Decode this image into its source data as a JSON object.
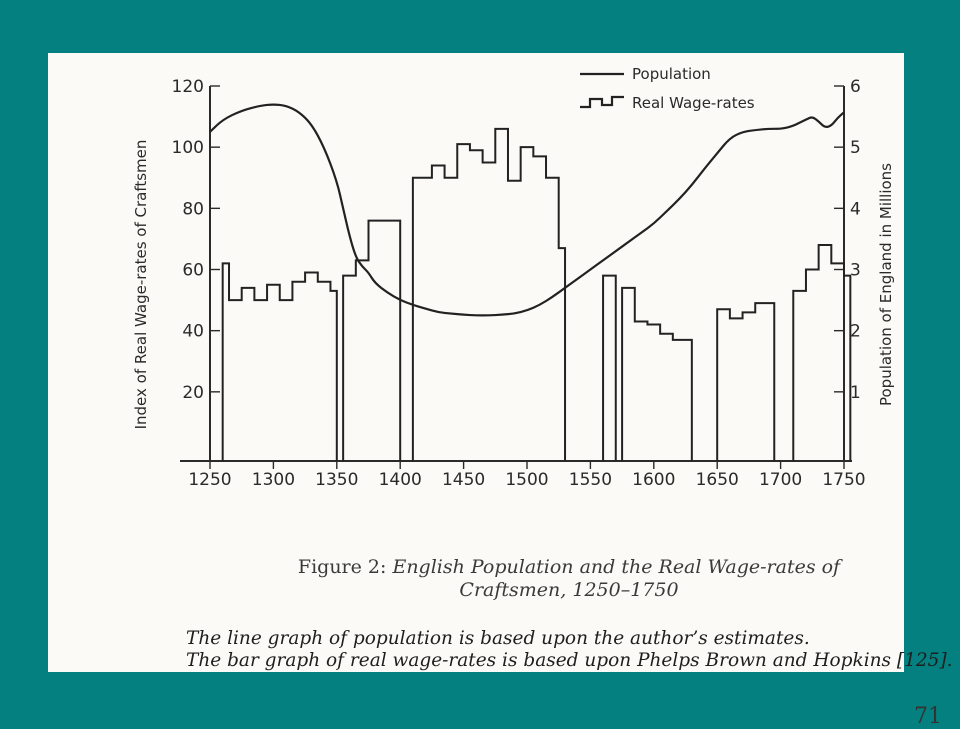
{
  "chart_data": {
    "type": "bar-line",
    "title": "",
    "ylabel_left": "Index of Real Wage-rates of Craftsmen",
    "ylabel_right": "Population of England in Millions",
    "xlim": [
      1250,
      1750
    ],
    "ylim_left": [
      0,
      120
    ],
    "ylim_right": [
      0,
      6
    ],
    "x_ticks": [
      "1250",
      "1300",
      "1350",
      "1400",
      "1450",
      "1500",
      "1550",
      "1600",
      "1650",
      "1700",
      "1750"
    ],
    "y_ticks_left": [
      "20",
      "40",
      "60",
      "80",
      "100",
      "120"
    ],
    "y_ticks_right": [
      "1",
      "2",
      "3",
      "4",
      "5",
      "6"
    ],
    "legend": [
      {
        "label": "Population",
        "style": "line"
      },
      {
        "label": "Real Wage-rates",
        "style": "step"
      }
    ],
    "series": [
      {
        "name": "Population",
        "axis": "right",
        "x": [
          1250,
          1260,
          1275,
          1290,
          1300,
          1310,
          1320,
          1330,
          1340,
          1350,
          1355,
          1360,
          1365,
          1370,
          1375,
          1380,
          1390,
          1400,
          1410,
          1420,
          1430,
          1440,
          1450,
          1460,
          1470,
          1480,
          1490,
          1500,
          1510,
          1520,
          1530,
          1540,
          1550,
          1560,
          1570,
          1580,
          1590,
          1600,
          1610,
          1620,
          1630,
          1640,
          1650,
          1660,
          1670,
          1680,
          1690,
          1700,
          1705,
          1710,
          1715,
          1720,
          1725,
          1730,
          1735,
          1740,
          1745,
          1750
        ],
        "values": [
          5.25,
          5.45,
          5.6,
          5.68,
          5.7,
          5.68,
          5.58,
          5.38,
          5.0,
          4.45,
          4.0,
          3.55,
          3.2,
          3.05,
          2.95,
          2.78,
          2.62,
          2.5,
          2.42,
          2.36,
          2.3,
          2.28,
          2.26,
          2.25,
          2.25,
          2.26,
          2.28,
          2.33,
          2.42,
          2.55,
          2.7,
          2.85,
          3.0,
          3.15,
          3.3,
          3.45,
          3.6,
          3.75,
          3.95,
          4.15,
          4.38,
          4.65,
          4.9,
          5.15,
          5.25,
          5.28,
          5.3,
          5.3,
          5.32,
          5.35,
          5.4,
          5.45,
          5.5,
          5.42,
          5.32,
          5.35,
          5.48,
          5.57
        ]
      },
      {
        "name": "Real Wage-rates",
        "axis": "left",
        "type": "step",
        "segments": [
          {
            "x": [
              1260,
              1265,
              1275,
              1285,
              1295,
              1305,
              1315,
              1325,
              1335,
              1345
            ],
            "values": [
              62,
              50,
              54,
              50,
              55,
              50,
              56,
              59,
              56,
              53
            ]
          },
          {
            "x": [
              1355,
              1365,
              1375,
              1395
            ],
            "values": [
              58,
              63,
              76,
              76
            ]
          },
          {
            "x": [
              1410,
              1425,
              1435,
              1445,
              1455,
              1465,
              1475,
              1485,
              1495,
              1505,
              1515,
              1525
            ],
            "values": [
              90,
              94,
              90,
              101,
              99,
              95,
              106,
              89,
              100,
              97,
              90,
              67
            ]
          },
          {
            "x": [
              1560,
              1565
            ],
            "values": [
              58,
              58
            ]
          },
          {
            "x": [
              1575,
              1585,
              1595,
              1605,
              1615,
              1625
            ],
            "values": [
              54,
              43,
              42,
              39,
              37,
              37
            ]
          },
          {
            "x": [
              1650,
              1660,
              1670,
              1680,
              1690
            ],
            "values": [
              47,
              44,
              46,
              49,
              49
            ]
          },
          {
            "x": [
              1710,
              1720,
              1730,
              1740,
              1750
            ],
            "values": [
              53,
              60,
              68,
              62,
              58
            ]
          }
        ]
      }
    ]
  },
  "caption": {
    "label": "Figure 2:",
    "line1": "English Population and the Real Wage-rates of",
    "line2": "Craftsmen, 1250–1750"
  },
  "notes": {
    "line1": "The line graph of population is based upon the author’s estimates.",
    "line2": "The bar graph of real wage-rates is based upon Phelps Brown and Hopkins [125]."
  },
  "page_number": "71"
}
